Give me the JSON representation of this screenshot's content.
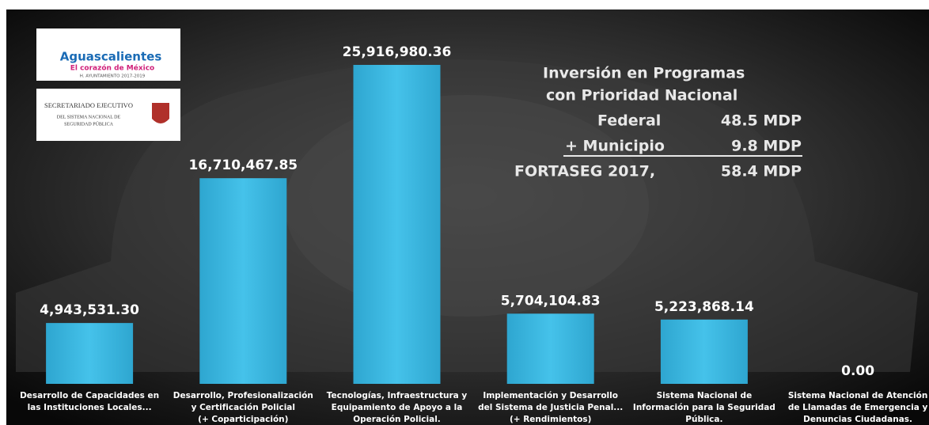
{
  "chart_data": {
    "type": "bar",
    "categories": [
      [
        "Desarrollo de Capacidades en",
        "las Instituciones Locales..."
      ],
      [
        "Desarrollo, Profesionalización",
        "y Certificación Policial",
        "(+ Coparticipación)"
      ],
      [
        "Tecnologías, Infraestructura y",
        "Equipamiento de Apoyo a la",
        "Operación Policial."
      ],
      [
        "Implementación y Desarrollo",
        "del Sistema de Justicia Penal...",
        "(+ Rendimientos)"
      ],
      [
        "Sistema Nacional de",
        "Información para la Seguridad",
        "Pública."
      ],
      [
        "Sistema Nacional de Atención",
        "de Llamadas de Emergencia y",
        "Denuncias Ciudadanas."
      ]
    ],
    "values": [
      4943531.3,
      16710467.85,
      25916980.36,
      5704104.83,
      5223868.14,
      0
    ],
    "value_labels": [
      "4,943,531.30",
      "16,710,467.85",
      "25,916,980.36",
      "5,704,104.83",
      "5,223,868.14",
      "0.00"
    ],
    "color": "#3db9e2",
    "annotation": {
      "title": [
        "Inversión en Programas",
        "con Prioridad Nacional"
      ],
      "rows": [
        {
          "label": "Federal",
          "amount": "48.5 MDP"
        },
        {
          "label": "+ Municipio",
          "amount": "9.8 MDP"
        },
        {
          "label": "FORTASEG 2017,",
          "amount": "58.4 MDP"
        }
      ]
    },
    "logos": {
      "municipio": [
        "Aguascalientes",
        "El corazón de México",
        "H. AYUNTAMIENTO 2017-2019"
      ],
      "secretariado": [
        "SECRETARIADO EJECUTIVO",
        "DEL SISTEMA NACIONAL DE",
        "SEGURIDAD PÚBLICA"
      ]
    }
  }
}
